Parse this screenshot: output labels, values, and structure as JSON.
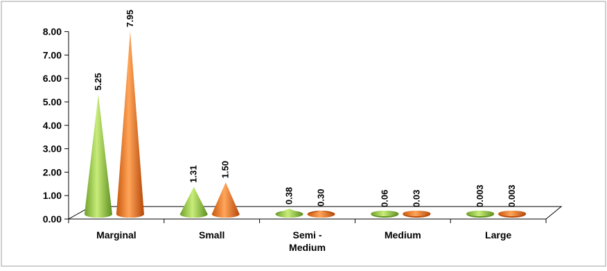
{
  "chart_data": {
    "type": "bar",
    "bar_shape": "cone",
    "three_d": true,
    "categories": [
      [
        "Marginal"
      ],
      [
        "Small"
      ],
      [
        "Semi -",
        "Medium"
      ],
      [
        "Medium"
      ],
      [
        "Large"
      ]
    ],
    "series": [
      {
        "color": "#8cc63f",
        "values": [
          5.25,
          1.31,
          0.38,
          0.06,
          0.003
        ],
        "labels": [
          "5.25",
          "1.31",
          "0.38",
          "0.06",
          "0.003"
        ]
      },
      {
        "color": "#e8731a",
        "values": [
          7.95,
          1.5,
          0.3,
          0.03,
          0.003
        ],
        "labels": [
          "7.95",
          "1.50",
          "0.30",
          "0.03",
          "0.003"
        ]
      }
    ],
    "ylim": [
      0,
      8
    ],
    "yticks": [
      "0.00",
      "1.00",
      "2.00",
      "3.00",
      "4.00",
      "5.00",
      "6.00",
      "7.00",
      "8.00"
    ],
    "grid": false,
    "legend": "none"
  }
}
